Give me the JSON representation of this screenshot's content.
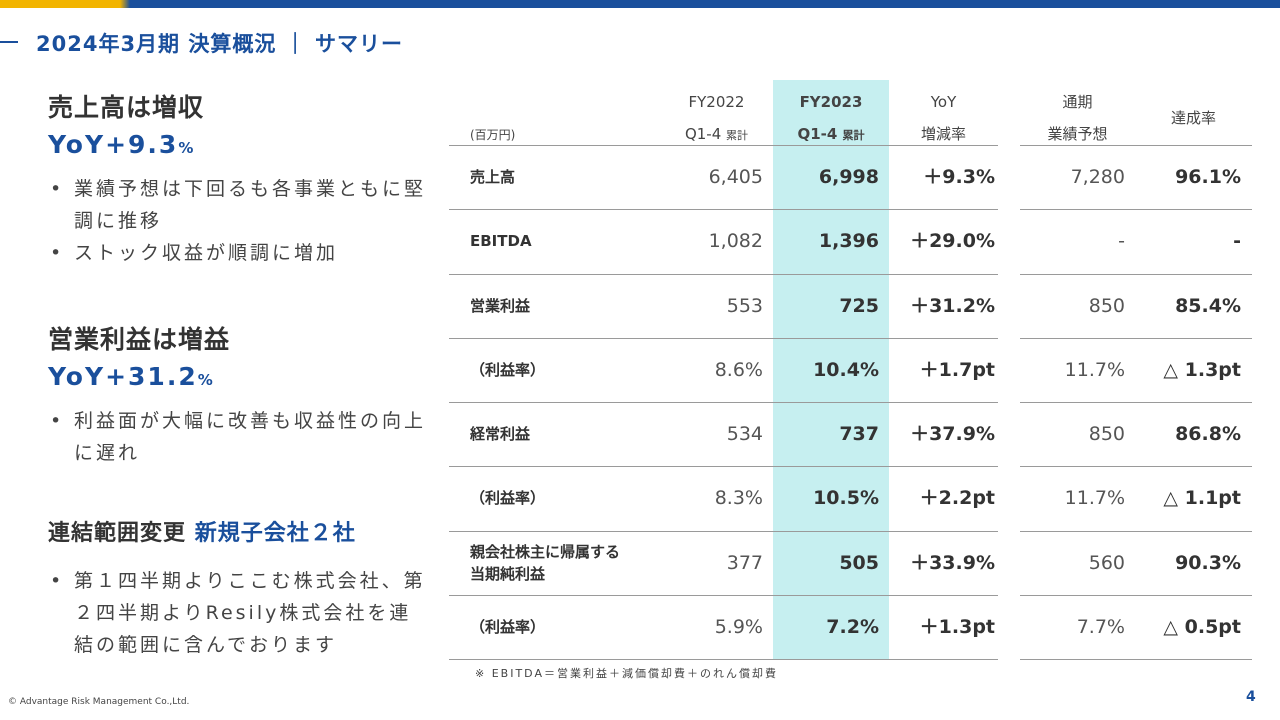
{
  "header": {
    "title": "2024年3月期 決算概況 ｜ サマリー"
  },
  "summary": [
    {
      "heading": "売上高は増収",
      "yoy": "YoY+9.3",
      "yoy_unit": "%",
      "bullets": [
        "業績予想は下回るも各事業ともに堅調に推移",
        "ストック収益が順調に増加"
      ]
    },
    {
      "heading": "営業利益は増益",
      "yoy": "YoY+31.2",
      "yoy_unit": "%",
      "bullets": [
        "利益面が大幅に改善も収益性の向上に遅れ"
      ]
    },
    {
      "heading": "連結範囲変更",
      "highlight": "新規子会社２社",
      "bullets": [
        "第１四半期よりここむ株式会社、第２四半期よりResily株式会社を連結の範囲に含んでおります"
      ]
    }
  ],
  "table": {
    "unit": "(百万円)",
    "columns": [
      {
        "line1": "FY2022",
        "line2": "Q1-4",
        "line2_small": "累計"
      },
      {
        "line1": "FY2023",
        "line2": "Q1-4",
        "line2_small": "累計"
      },
      {
        "line1": "YoY",
        "line2": "増減率"
      },
      {
        "line1": "通期",
        "line2": "業績予想"
      },
      {
        "line1": "達成率"
      }
    ],
    "rows": [
      {
        "label": "売上高",
        "values": [
          "6,405",
          "6,998",
          "＋9.3%",
          "7,280",
          "96.1%"
        ]
      },
      {
        "label": "EBITDA",
        "values": [
          "1,082",
          "1,396",
          "＋29.0%",
          "-",
          "-"
        ]
      },
      {
        "label": "営業利益",
        "values": [
          "553",
          "725",
          "＋31.2%",
          "850",
          "85.4%"
        ]
      },
      {
        "label": "（利益率）",
        "values": [
          "8.6%",
          "10.4%",
          "＋1.7pt",
          "11.7%",
          "△ 1.3pt"
        ]
      },
      {
        "label": "経常利益",
        "values": [
          "534",
          "737",
          "＋37.9%",
          "850",
          "86.8%"
        ]
      },
      {
        "label": "（利益率）",
        "values": [
          "8.3%",
          "10.5%",
          "＋2.2pt",
          "11.7%",
          "△ 1.1pt"
        ]
      },
      {
        "label": [
          "親会社株主に帰属する",
          "当期純利益"
        ],
        "values": [
          "377",
          "505",
          "＋33.9%",
          "560",
          "90.3%"
        ]
      },
      {
        "label": "（利益率）",
        "values": [
          "5.9%",
          "7.2%",
          "＋1.3pt",
          "7.7%",
          "△ 0.5pt"
        ]
      }
    ],
    "footnote": "※ EBITDA＝営業利益＋減価償却費＋のれん償却費"
  },
  "footer": {
    "copyright": "© Advantage Risk Management Co.,Ltd.",
    "page": "4"
  }
}
